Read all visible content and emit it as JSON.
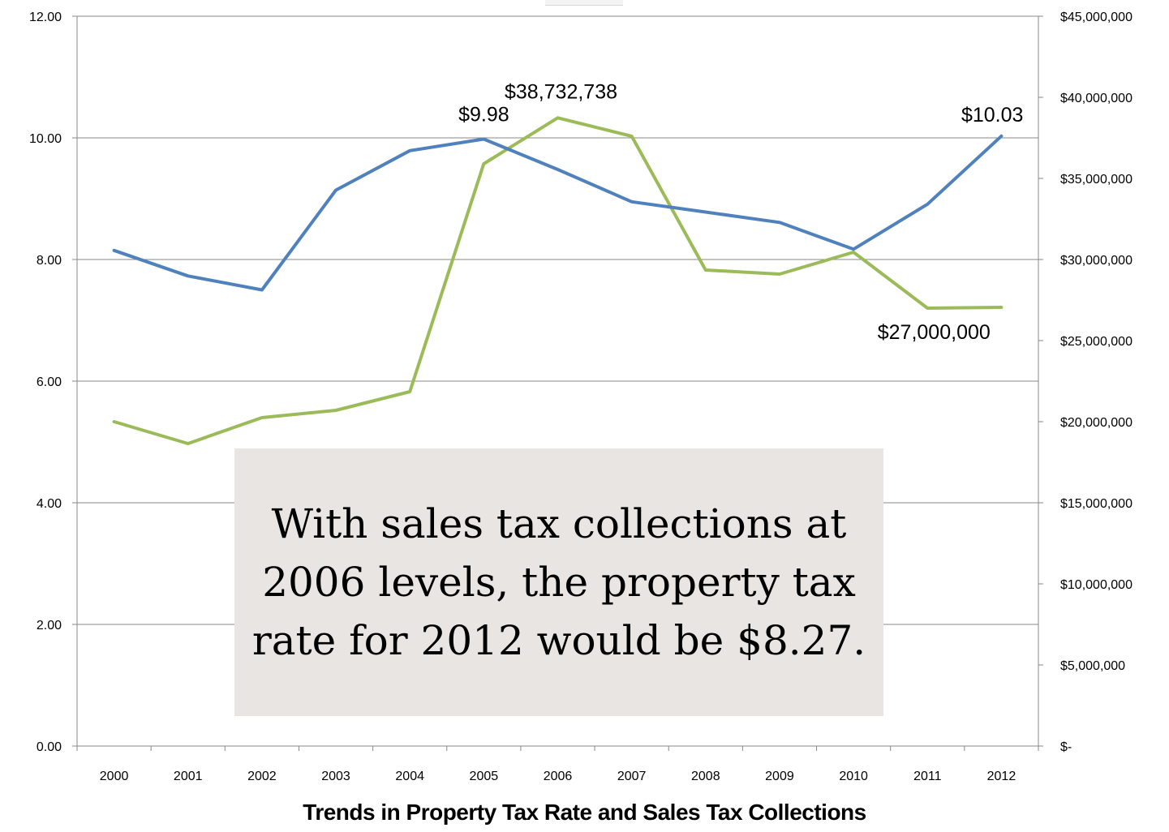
{
  "chart_data": {
    "type": "line",
    "title": "Trends in Property Tax Rate and Sales Tax Collections",
    "categories": [
      "2000",
      "2001",
      "2002",
      "2003",
      "2004",
      "2005",
      "2006",
      "2007",
      "2008",
      "2009",
      "2010",
      "2011",
      "2012"
    ],
    "series": [
      {
        "axis": "left",
        "color": "#4f81bd",
        "values": [
          8.15,
          7.73,
          7.5,
          9.14,
          9.79,
          9.98,
          9.48,
          8.95,
          8.78,
          8.61,
          8.17,
          8.91,
          10.03
        ]
      },
      {
        "axis": "right",
        "color": "#9bbb59",
        "values": [
          20000000,
          18650000,
          20250000,
          20700000,
          21850000,
          35900000,
          38732738,
          37600000,
          29350000,
          29100000,
          30450000,
          27000000,
          27050000
        ]
      }
    ],
    "y_left": {
      "range": [
        0,
        12
      ],
      "ticks": [
        0,
        2,
        4,
        6,
        8,
        10,
        12
      ],
      "tick_labels": [
        "0.00",
        "2.00",
        "4.00",
        "6.00",
        "8.00",
        "10.00",
        "12.00"
      ]
    },
    "y_right": {
      "range": [
        0,
        45000000
      ],
      "ticks": [
        0,
        5000000,
        10000000,
        15000000,
        20000000,
        25000000,
        30000000,
        35000000,
        40000000,
        45000000
      ],
      "tick_labels": [
        "$-",
        "$5,000,000",
        "$10,000,000",
        "$15,000,000",
        "$20,000,000",
        "$25,000,000",
        "$30,000,000",
        "$35,000,000",
        "$40,000,000",
        "$45,000,000"
      ]
    },
    "gridlines": true,
    "annotations": [
      {
        "series": 0,
        "index": 5,
        "text": "$9.98",
        "position": "above"
      },
      {
        "series": 1,
        "index": 6,
        "text": "$38,732,738",
        "position": "above"
      },
      {
        "series": 0,
        "index": 12,
        "text": "$10.03",
        "position": "above-left"
      },
      {
        "series": 1,
        "index": 11,
        "text": "$27,000,000",
        "position": "below"
      }
    ]
  },
  "callout": {
    "text": "With sales tax collections at 2006 levels, the property tax rate for 2012 would be $8.27."
  },
  "colors": {
    "callout_background": "#e8e5e2",
    "gridline": "#888888"
  }
}
